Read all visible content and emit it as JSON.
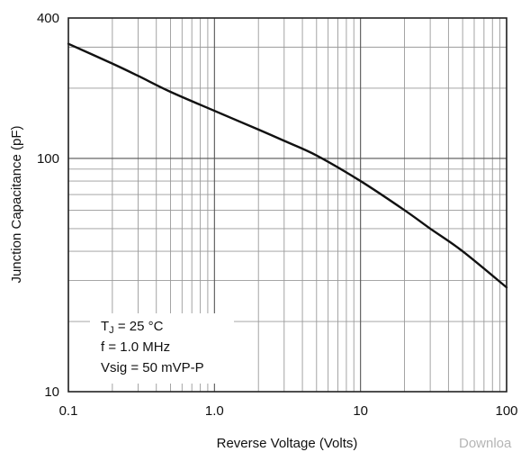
{
  "chart_data": {
    "type": "line",
    "title": "",
    "xlabel": "Reverse Voltage (Volts)",
    "ylabel": "Junction Capacitance (pF)",
    "xscale": "log",
    "yscale": "log",
    "xlim": [
      0.1,
      100
    ],
    "ylim": [
      10,
      400
    ],
    "grid": true,
    "x_ticks": [
      {
        "value": 0.1,
        "label": "0.1"
      },
      {
        "value": 1,
        "label": "1.0"
      },
      {
        "value": 10,
        "label": "10"
      },
      {
        "value": 100,
        "label": "100"
      }
    ],
    "y_ticks": [
      {
        "value": 10,
        "label": "10"
      },
      {
        "value": 100,
        "label": "100"
      },
      {
        "value": 400,
        "label": "400"
      }
    ],
    "x_minor_grid": [
      0.2,
      0.3,
      0.4,
      0.5,
      0.6,
      0.7,
      0.8,
      0.9,
      2,
      3,
      4,
      5,
      6,
      7,
      8,
      9,
      20,
      30,
      40,
      50,
      60,
      70,
      80,
      90
    ],
    "y_minor_grid": [
      20,
      30,
      40,
      50,
      60,
      70,
      80,
      90,
      200,
      300
    ],
    "series": [
      {
        "name": "",
        "color": "#111111",
        "x": [
          0.1,
          0.2,
          0.3,
          0.5,
          1.0,
          2.0,
          3.0,
          5.0,
          10,
          20,
          30,
          50,
          100
        ],
        "y": [
          310,
          255,
          226,
          193,
          160,
          133,
          119,
          103,
          80,
          60,
          50,
          40,
          28
        ]
      }
    ],
    "annotation": {
      "tj_main": "T",
      "tj_sub": "J",
      "tj_rest": " = 25 °C",
      "line2": "f = 1.0 MHz",
      "line3": "Vsig = 50 mVP-P"
    }
  },
  "watermark": "Downloa"
}
